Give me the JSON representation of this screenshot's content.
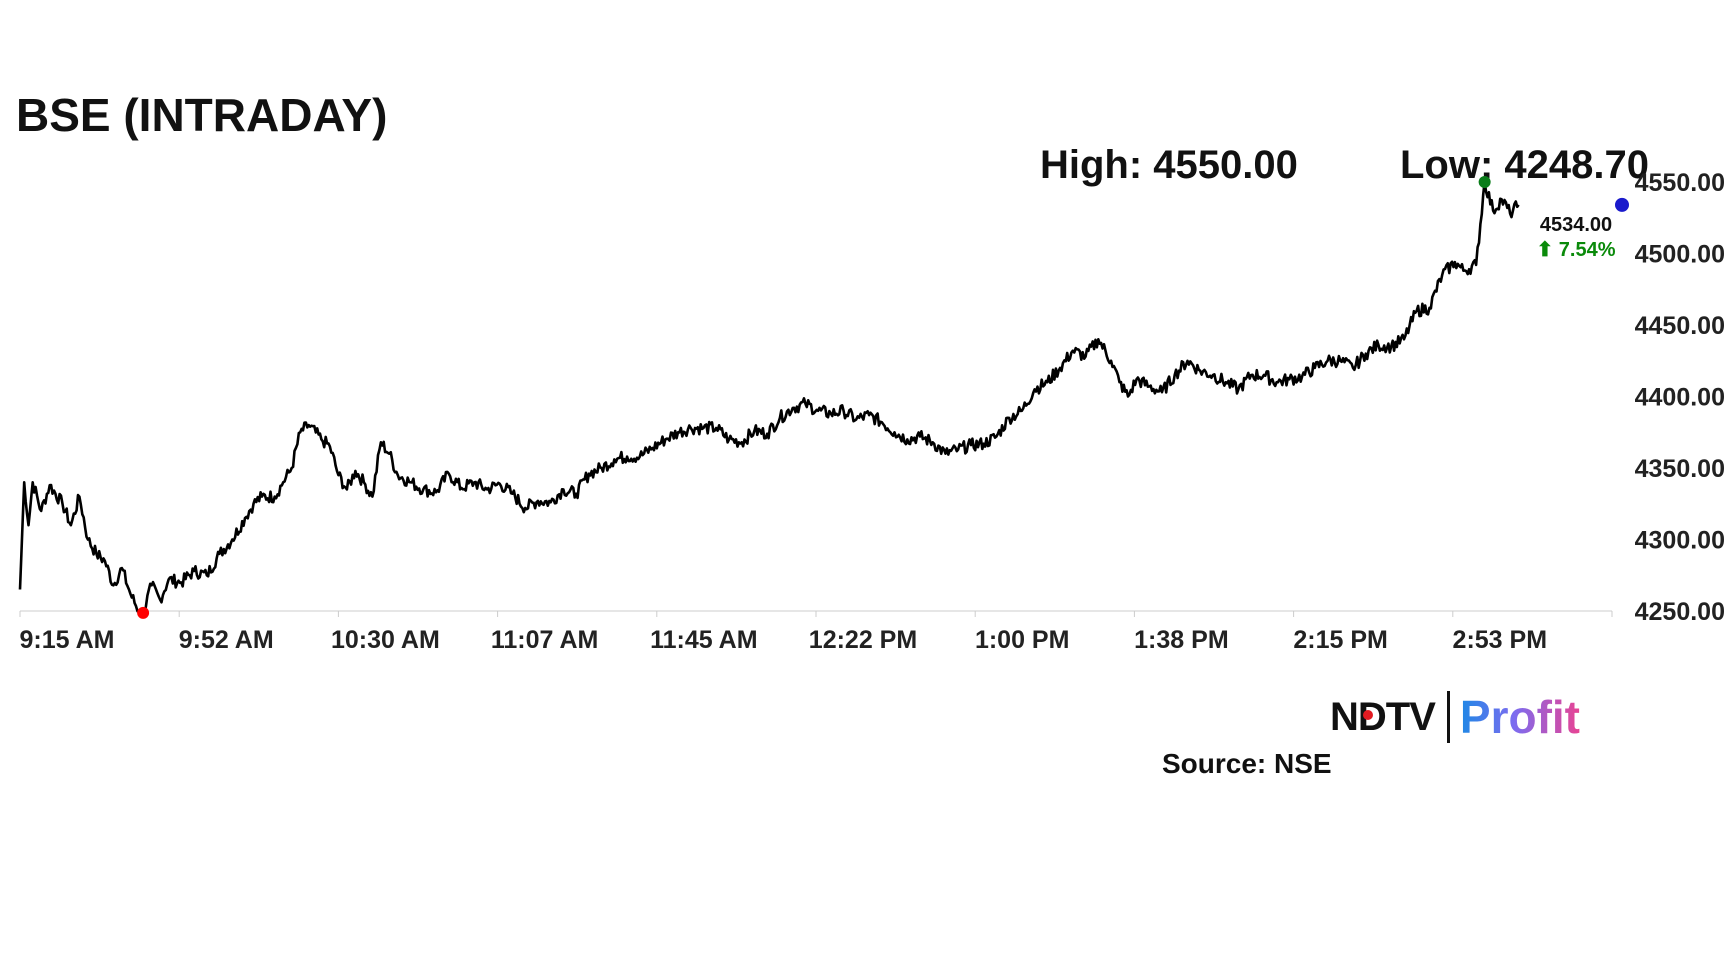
{
  "title": "BSE (INTRADAY)",
  "high_label": "High: 4550.00",
  "low_label": "Low: 4248.70",
  "last_price": "4534.00",
  "change": "⬆ 7.54%",
  "source": "Source: NSE",
  "logo": {
    "left": "NDTV",
    "right": "Profit"
  },
  "colors": {
    "line": "#000000",
    "high_marker": "#0a7d1a",
    "low_marker": "#ff0000",
    "last_marker": "#1a1acc",
    "change_text": "#0a8a0a",
    "axis": "#cccccc"
  },
  "chart_data": {
    "type": "line",
    "title": "BSE (INTRADAY)",
    "xlabel": "",
    "ylabel": "",
    "x_ticks": [
      "9:15 AM",
      "9:52 AM",
      "10:30 AM",
      "11:07 AM",
      "11:45 AM",
      "12:22 PM",
      "1:00 PM",
      "1:38 PM",
      "2:15 PM",
      "2:53 PM"
    ],
    "y_ticks": [
      "4250.00",
      "4300.00",
      "4350.00",
      "4400.00",
      "4450.00",
      "4500.00",
      "4550.00"
    ],
    "ylim": [
      4250,
      4550
    ],
    "xlim": [
      "9:15 AM",
      "3:30 PM"
    ],
    "high": 4550.0,
    "low": 4248.7,
    "last": 4534.0,
    "change_pct": 7.54,
    "grid": false,
    "series": [
      {
        "values": [
          [
            "9:15",
            4265
          ],
          [
            "9:16",
            4340
          ],
          [
            "9:17",
            4310
          ],
          [
            "9:18",
            4340
          ],
          [
            "9:20",
            4320
          ],
          [
            "9:22",
            4338
          ],
          [
            "9:25",
            4325
          ],
          [
            "9:27",
            4310
          ],
          [
            "9:29",
            4330
          ],
          [
            "9:31",
            4300
          ],
          [
            "9:33",
            4290
          ],
          [
            "9:35",
            4285
          ],
          [
            "9:37",
            4268
          ],
          [
            "9:39",
            4280
          ],
          [
            "9:41",
            4262
          ],
          [
            "9:43",
            4250
          ],
          [
            "9:44",
            4248.7
          ],
          [
            "9:46",
            4268
          ],
          [
            "9:48",
            4258
          ],
          [
            "9:50",
            4272
          ],
          [
            "9:53",
            4270
          ],
          [
            "9:56",
            4278
          ],
          [
            "9:59",
            4275
          ],
          [
            "10:02",
            4290
          ],
          [
            "10:05",
            4300
          ],
          [
            "10:08",
            4315
          ],
          [
            "10:10",
            4325
          ],
          [
            "10:12",
            4330
          ],
          [
            "10:15",
            4330
          ],
          [
            "10:17",
            4340
          ],
          [
            "10:19",
            4350
          ],
          [
            "10:21",
            4375
          ],
          [
            "10:23",
            4380
          ],
          [
            "10:26",
            4370
          ],
          [
            "10:28",
            4365
          ],
          [
            "10:30",
            4345
          ],
          [
            "10:32",
            4335
          ],
          [
            "10:34",
            4348
          ],
          [
            "10:36",
            4340
          ],
          [
            "10:38",
            4330
          ],
          [
            "10:40",
            4368
          ],
          [
            "10:42",
            4360
          ],
          [
            "10:44",
            4345
          ],
          [
            "10:47",
            4340
          ],
          [
            "10:50",
            4335
          ],
          [
            "10:53",
            4333
          ],
          [
            "10:56",
            4346
          ],
          [
            "10:59",
            4336
          ],
          [
            "11:02",
            4340
          ],
          [
            "11:05",
            4335
          ],
          [
            "11:08",
            4339
          ],
          [
            "11:11",
            4332
          ],
          [
            "11:14",
            4322
          ],
          [
            "11:17",
            4327
          ],
          [
            "11:20",
            4326
          ],
          [
            "11:23",
            4335
          ],
          [
            "11:26",
            4332
          ],
          [
            "11:29",
            4346
          ],
          [
            "11:32",
            4350
          ],
          [
            "11:35",
            4356
          ],
          [
            "11:38",
            4358
          ],
          [
            "11:41",
            4358
          ],
          [
            "11:44",
            4364
          ],
          [
            "11:47",
            4370
          ],
          [
            "11:50",
            4375
          ],
          [
            "11:53",
            4378
          ],
          [
            "11:56",
            4378
          ],
          [
            "11:59",
            4378
          ],
          [
            "12:02",
            4370
          ],
          [
            "12:05",
            4368
          ],
          [
            "12:08",
            4376
          ],
          [
            "12:11",
            4374
          ],
          [
            "12:14",
            4385
          ],
          [
            "12:17",
            4392
          ],
          [
            "12:20",
            4395
          ],
          [
            "12:23",
            4390
          ],
          [
            "12:26",
            4388
          ],
          [
            "12:29",
            4390
          ],
          [
            "12:32",
            4384
          ],
          [
            "12:35",
            4387
          ],
          [
            "12:38",
            4382
          ],
          [
            "12:41",
            4375
          ],
          [
            "12:44",
            4370
          ],
          [
            "12:47",
            4372
          ],
          [
            "12:50",
            4368
          ],
          [
            "12:53",
            4360
          ],
          [
            "12:56",
            4363
          ],
          [
            "12:59",
            4366
          ],
          [
            "13:02",
            4367
          ],
          [
            "13:05",
            4372
          ],
          [
            "13:08",
            4385
          ],
          [
            "13:11",
            4390
          ],
          [
            "13:14",
            4405
          ],
          [
            "13:17",
            4410
          ],
          [
            "13:20",
            4420
          ],
          [
            "13:23",
            4432
          ],
          [
            "13:26",
            4428
          ],
          [
            "13:29",
            4440
          ],
          [
            "13:32",
            4425
          ],
          [
            "13:34",
            4410
          ],
          [
            "13:36",
            4400
          ],
          [
            "13:38",
            4412
          ],
          [
            "13:41",
            4407
          ],
          [
            "13:44",
            4403
          ],
          [
            "13:47",
            4415
          ],
          [
            "13:50",
            4425
          ],
          [
            "13:53",
            4418
          ],
          [
            "13:56",
            4415
          ],
          [
            "13:59",
            4410
          ],
          [
            "14:02",
            4405
          ],
          [
            "14:05",
            4415
          ],
          [
            "14:08",
            4415
          ],
          [
            "14:11",
            4410
          ],
          [
            "14:14",
            4412
          ],
          [
            "14:17",
            4414
          ],
          [
            "14:20",
            4420
          ],
          [
            "14:23",
            4425
          ],
          [
            "14:26",
            4425
          ],
          [
            "14:29",
            4420
          ],
          [
            "14:32",
            4430
          ],
          [
            "14:35",
            4436
          ],
          [
            "14:38",
            4435
          ],
          [
            "14:41",
            4440
          ],
          [
            "14:44",
            4460
          ],
          [
            "14:47",
            4462
          ],
          [
            "14:50",
            4485
          ],
          [
            "14:53",
            4494
          ],
          [
            "14:55",
            4488
          ],
          [
            "14:58",
            4492
          ],
          [
            "15:00",
            4550
          ],
          [
            "15:02",
            4530
          ],
          [
            "15:04",
            4538
          ],
          [
            "15:06",
            4528
          ],
          [
            "15:08",
            4534
          ]
        ]
      }
    ]
  }
}
